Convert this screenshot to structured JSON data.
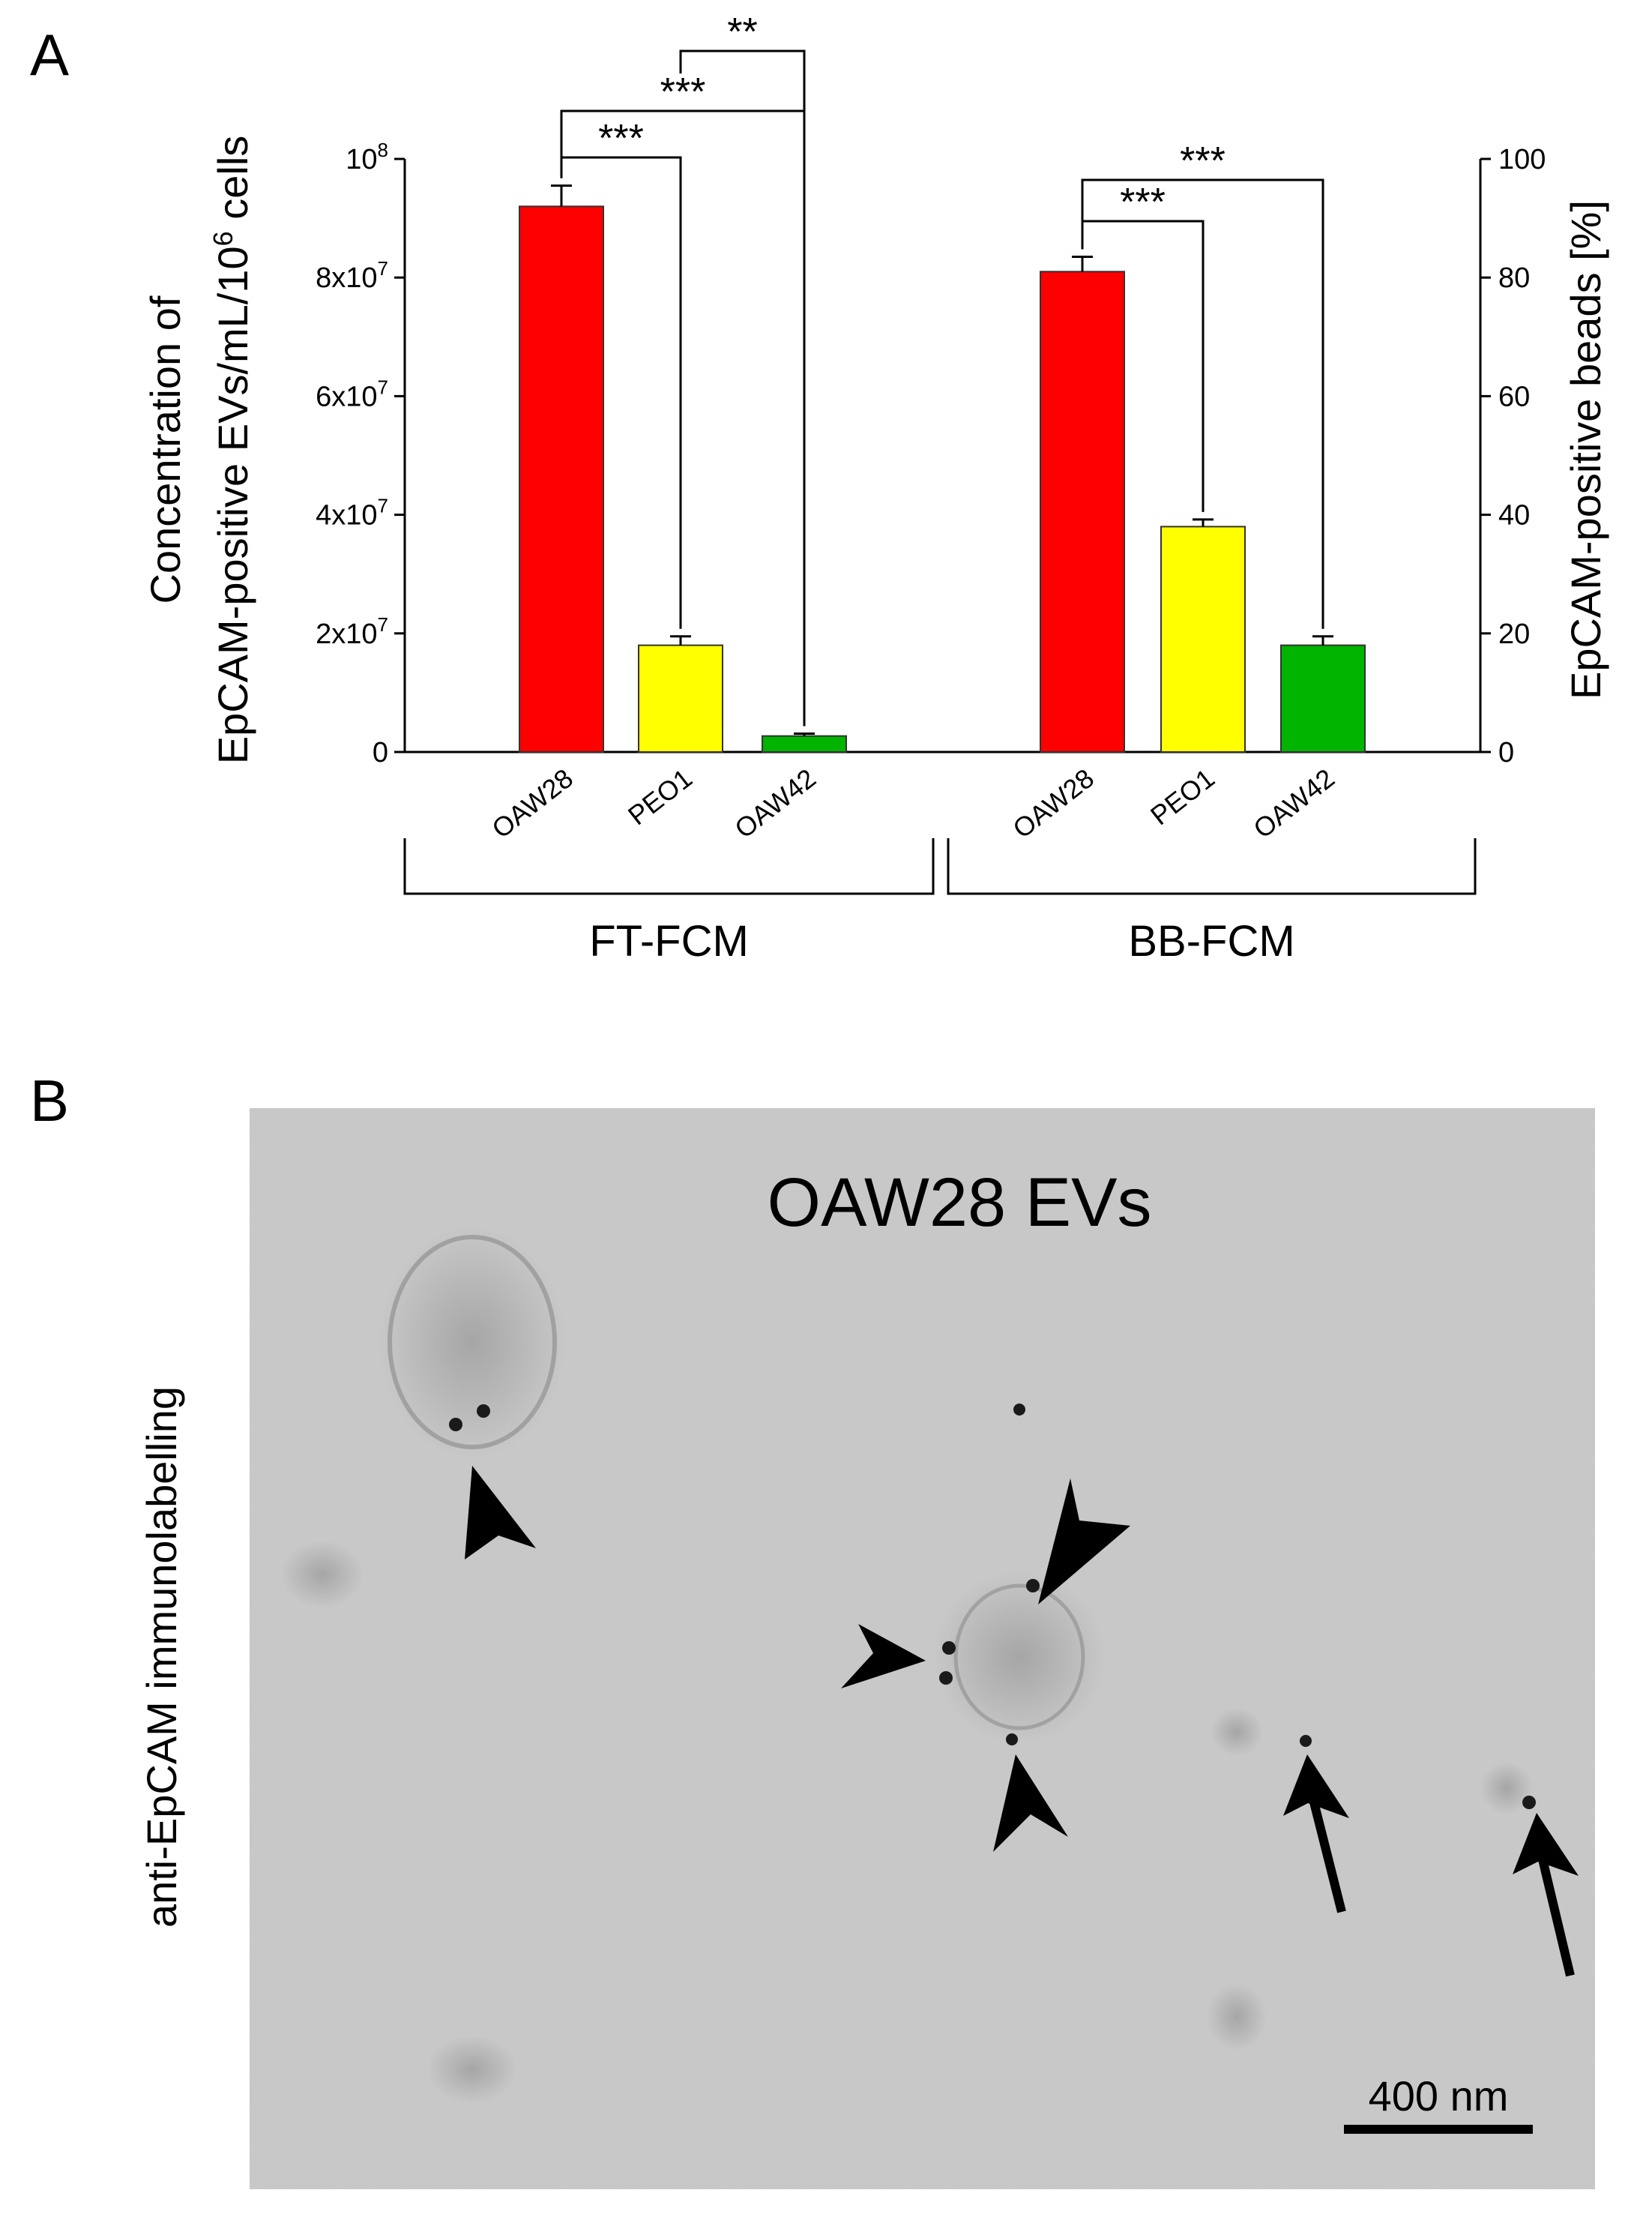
{
  "panels": {
    "a_label": "A",
    "b_label": "B"
  },
  "chart_data": {
    "type": "bar",
    "groups": [
      {
        "label": "FT-FCM",
        "axis": "left",
        "categories": [
          "OAW28",
          "PEO1",
          "OAW42"
        ],
        "values": [
          92000000,
          18000000,
          2700000
        ],
        "errors": [
          3500000,
          1500000,
          400000
        ],
        "colors": [
          "#ff0000",
          "#ffff00",
          "#00b400"
        ]
      },
      {
        "label": "BB-FCM",
        "axis": "right",
        "categories": [
          "OAW28",
          "PEO1",
          "OAW42"
        ],
        "values": [
          81,
          38,
          18
        ],
        "errors": [
          2.5,
          1.2,
          1.5
        ],
        "colors": [
          "#ff0000",
          "#ffff00",
          "#00b400"
        ]
      }
    ],
    "left_axis": {
      "label_line1": "Concentration of",
      "label_line2_main": "EpCAM-positive EVs/mL/10",
      "label_line2_sup": "6",
      "label_line2_end": " cells",
      "ylim": [
        0,
        100000000
      ],
      "ticks": [
        {
          "value": 0,
          "base": "0",
          "exp": ""
        },
        {
          "value": 20000000,
          "base": "2x10",
          "exp": "7"
        },
        {
          "value": 40000000,
          "base": "4x10",
          "exp": "7"
        },
        {
          "value": 60000000,
          "base": "6x10",
          "exp": "7"
        },
        {
          "value": 80000000,
          "base": "8x10",
          "exp": "7"
        },
        {
          "value": 100000000,
          "base": "10",
          "exp": "8"
        }
      ]
    },
    "right_axis": {
      "label": "EpCAM-positive beads [%]",
      "ylim": [
        0,
        100
      ],
      "ticks": [
        0,
        20,
        40,
        60,
        80,
        100
      ]
    },
    "significance": [
      {
        "group": 0,
        "from": 0,
        "to": 1,
        "label": "***"
      },
      {
        "group": 0,
        "from": 0,
        "to": 2,
        "label": "***"
      },
      {
        "group": 0,
        "from": 1,
        "to": 2,
        "label": "**"
      },
      {
        "group": 1,
        "from": 0,
        "to": 1,
        "label": "***"
      },
      {
        "group": 1,
        "from": 0,
        "to": 2,
        "label": "***"
      }
    ]
  },
  "micrograph": {
    "title": "OAW28 EVs",
    "side_label": "anti-EpCAM immunolabelling",
    "scale_bar": "400 nm",
    "background": "#c9c9c9"
  }
}
